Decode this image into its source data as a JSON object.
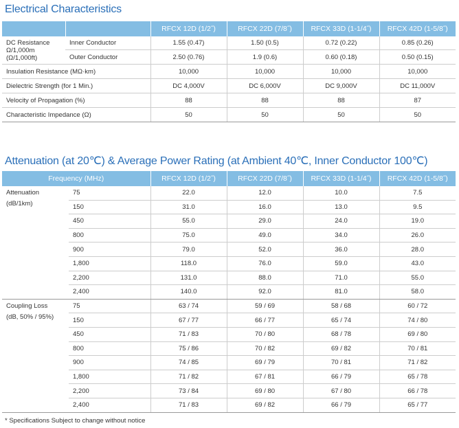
{
  "electrical": {
    "title": "Electrical Characteristics",
    "columns": [
      "RFCX 12D (1/2˝)",
      "RFCX 22D (7/8˝)",
      "RFCX 33D (1-1/4˝)",
      "RFCX 42D (1-5/8˝)"
    ],
    "dc_group_label": [
      "DC Resistance",
      "Ω/1,000m",
      "(Ω/1,000ft)"
    ],
    "dc_rows": [
      {
        "label": "Inner Conductor",
        "values": [
          "1.55 (0.47)",
          "1.50 (0.5)",
          "0.72 (0.22)",
          "0.85 (0.26)"
        ]
      },
      {
        "label": "Outer Conductor",
        "values": [
          "2.50 (0.76)",
          "1.9 (0.6)",
          "0.60 (0.18)",
          "0.50 (0.15)"
        ]
      }
    ],
    "rows": [
      {
        "label": "Insulation Resistance (MΩ·km)",
        "values": [
          "10,000",
          "10,000",
          "10,000",
          "10,000"
        ]
      },
      {
        "label": "Dielectric Strength (for 1 Min.)",
        "values": [
          "DC 4,000V",
          "DC 6,000V",
          "DC 9,000V",
          "DC 11,000V"
        ]
      },
      {
        "label": "Velocity of Propagation (%)",
        "values": [
          "88",
          "88",
          "88",
          "87"
        ]
      },
      {
        "label": "Characteristic Impedance (Ω)",
        "values": [
          "50",
          "50",
          "50",
          "50"
        ]
      }
    ]
  },
  "attenuation": {
    "title": "Attenuation (at 20℃) & Average Power Rating (at Ambient 40℃, Inner Conductor 100℃)",
    "frequency_header": "Frequency (MHz)",
    "columns": [
      "RFCX 12D (1/2˝)",
      "RFCX 22D (7/8˝)",
      "RFCX 33D (1-1/4˝)",
      "RFCX 42D (1-5/8˝)"
    ],
    "groups": [
      {
        "label": [
          "Attenuation",
          "(dB/1km)"
        ],
        "rows": [
          {
            "freq": "75",
            "values": [
              "22.0",
              "12.0",
              "10.0",
              "7.5"
            ]
          },
          {
            "freq": "150",
            "values": [
              "31.0",
              "16.0",
              "13.0",
              "9.5"
            ]
          },
          {
            "freq": "450",
            "values": [
              "55.0",
              "29.0",
              "24.0",
              "19.0"
            ]
          },
          {
            "freq": "800",
            "values": [
              "75.0",
              "49.0",
              "34.0",
              "26.0"
            ]
          },
          {
            "freq": "900",
            "values": [
              "79.0",
              "52.0",
              "36.0",
              "28.0"
            ]
          },
          {
            "freq": "1,800",
            "values": [
              "118.0",
              "76.0",
              "59.0",
              "43.0"
            ]
          },
          {
            "freq": "2,200",
            "values": [
              "131.0",
              "88.0",
              "71.0",
              "55.0"
            ]
          },
          {
            "freq": "2,400",
            "values": [
              "140.0",
              "92.0",
              "81.0",
              "58.0"
            ]
          }
        ]
      },
      {
        "label": [
          "Coupling Loss",
          "(dB, 50% / 95%)"
        ],
        "rows": [
          {
            "freq": "75",
            "values": [
              "63 / 74",
              "59 / 69",
              "58 / 68",
              "60 / 72"
            ]
          },
          {
            "freq": "150",
            "values": [
              "67 / 77",
              "66 / 77",
              "65 / 74",
              "74 / 80"
            ]
          },
          {
            "freq": "450",
            "values": [
              "71 / 83",
              "70 / 80",
              "68 / 78",
              "69 / 80"
            ]
          },
          {
            "freq": "800",
            "values": [
              "75 / 86",
              "70 / 82",
              "69 / 82",
              "70 / 81"
            ]
          },
          {
            "freq": "900",
            "values": [
              "74 / 85",
              "69 / 79",
              "70 / 81",
              "71 / 82"
            ]
          },
          {
            "freq": "1,800",
            "values": [
              "71 / 82",
              "67 / 81",
              "66 / 79",
              "65 / 78"
            ]
          },
          {
            "freq": "2,200",
            "values": [
              "73 / 84",
              "69 / 80",
              "67 / 80",
              "66 / 78"
            ]
          },
          {
            "freq": "2,400",
            "values": [
              "71 / 83",
              "69 / 82",
              "66 / 79",
              "65 / 77"
            ]
          }
        ]
      }
    ]
  },
  "footnote": "* Specifications Subject to change without notice",
  "colors": {
    "title": "#2a6fb8",
    "header_bg": "#84bde3",
    "header_text": "#ffffff"
  }
}
